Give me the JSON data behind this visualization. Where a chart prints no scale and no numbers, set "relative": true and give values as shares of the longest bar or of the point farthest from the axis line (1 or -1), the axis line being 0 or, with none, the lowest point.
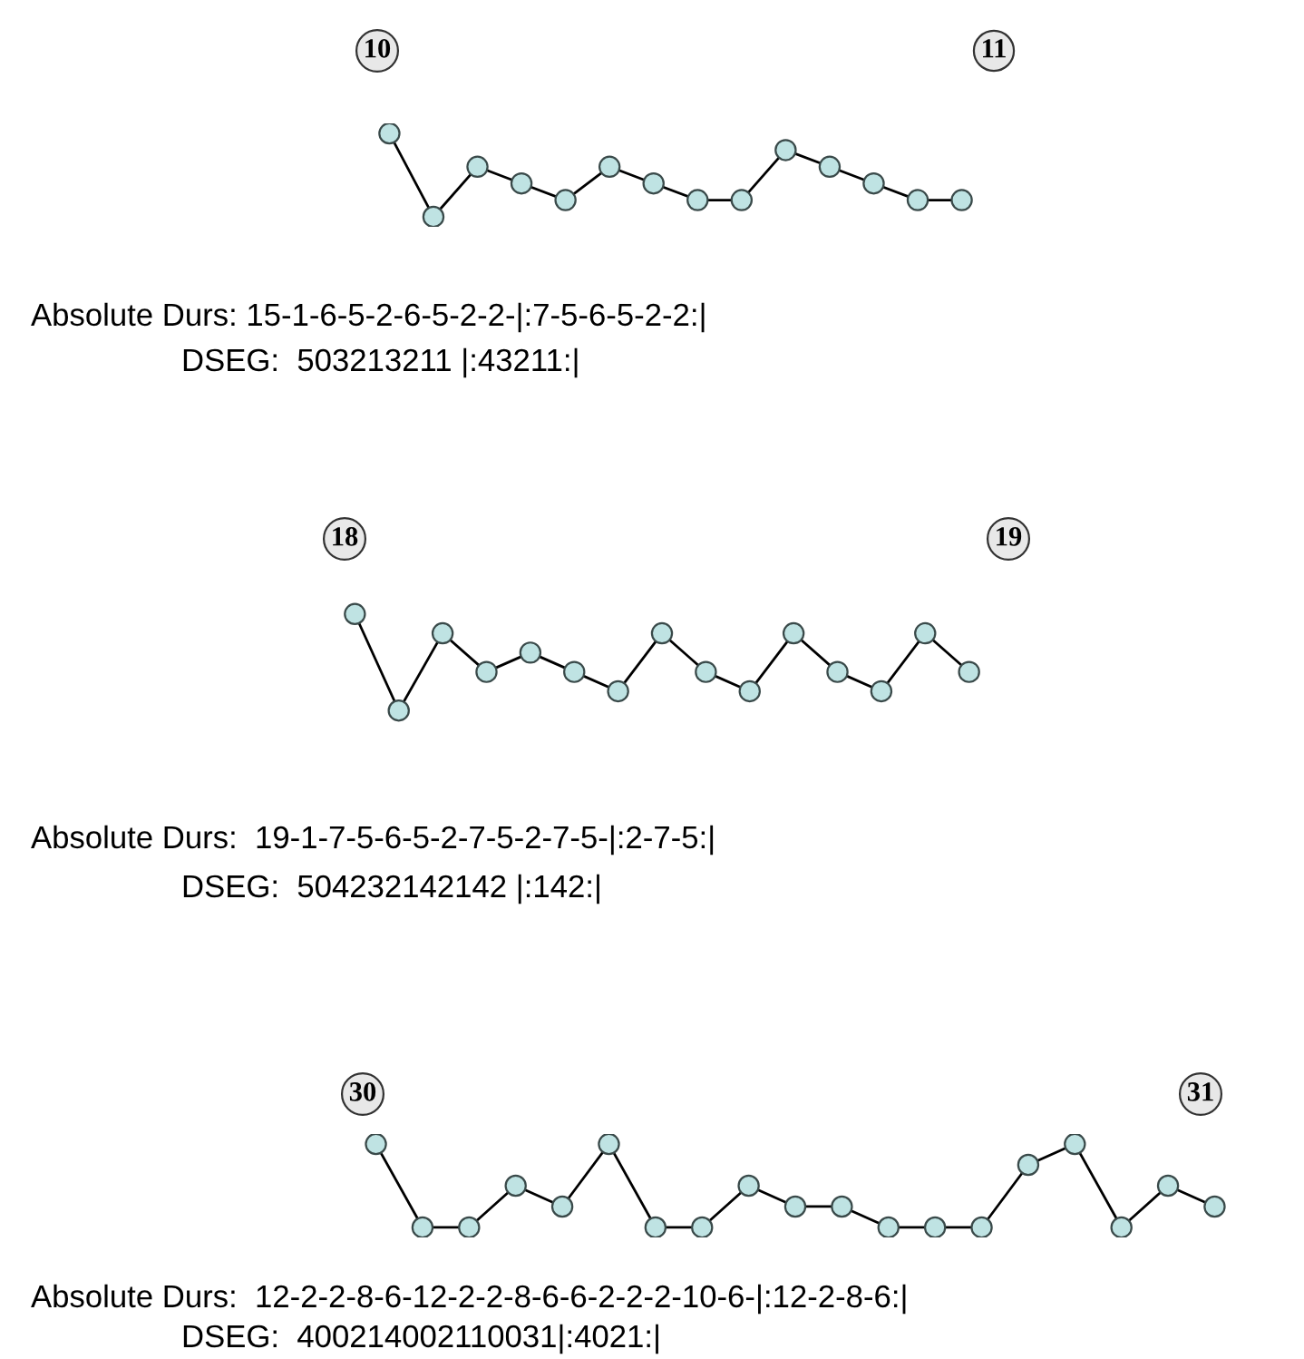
{
  "chart_data": [
    {
      "type": "line",
      "relative": true,
      "categories": [
        null,
        null,
        null,
        null,
        null,
        null,
        null,
        null,
        null,
        null,
        null,
        null,
        null,
        null
      ],
      "marker": "circle",
      "series": [
        {
          "color": "#000000",
          "values": [
            1,
            0,
            0.6,
            0.4,
            0.2,
            0.6,
            0.4,
            0.2,
            0.2,
            0.8,
            0.6,
            0.4,
            0.2,
            0.2
          ]
        }
      ],
      "annotations": [
        "10",
        "11",
        "Absolute Durs: 15-1-6-5-2-6-5-2-2-|:7-5-6-5-2-2:|",
        "DSEG:  503213211 |:43211:|"
      ]
    },
    {
      "type": "line",
      "relative": true,
      "categories": [
        null,
        null,
        null,
        null,
        null,
        null,
        null,
        null,
        null,
        null,
        null,
        null,
        null,
        null,
        null
      ],
      "marker": "circle",
      "series": [
        {
          "color": "#000000",
          "values": [
            1,
            0,
            0.8,
            0.4,
            0.6,
            0.4,
            0.2,
            0.8,
            0.4,
            0.2,
            0.8,
            0.4,
            0.2,
            0.8,
            0.4
          ]
        }
      ],
      "annotations": [
        "18",
        "19",
        "Absolute Durs:  19-1-7-5-6-5-2-7-5-2-7-5-|:2-7-5:|",
        "DSEG:  504232142142 |:142:|"
      ]
    },
    {
      "type": "line",
      "relative": true,
      "categories": [
        null,
        null,
        null,
        null,
        null,
        null,
        null,
        null,
        null,
        null,
        null,
        null,
        null,
        null,
        null,
        null,
        null,
        null,
        null
      ],
      "marker": "circle",
      "series": [
        {
          "color": "#000000",
          "values": [
            1,
            0,
            0,
            0.5,
            0.25,
            1,
            0,
            0,
            0.5,
            0.25,
            0.25,
            0,
            0,
            0,
            0.75,
            1,
            0,
            0.5,
            0.25
          ]
        }
      ],
      "annotations": [
        "30",
        "31",
        "Absolute Durs:  12-2-2-8-6-12-2-2-8-6-6-2-2-2-10-6-|:12-2-8-6:|",
        "DSEG:  400214002110031|:4021:|"
      ]
    }
  ]
}
